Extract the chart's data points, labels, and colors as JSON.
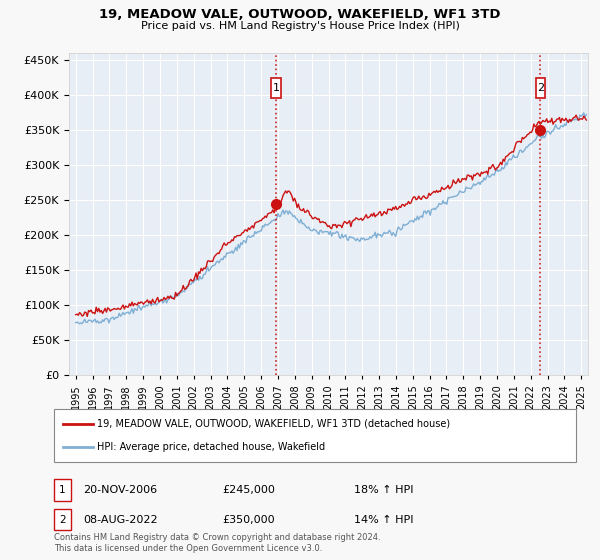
{
  "title": "19, MEADOW VALE, OUTWOOD, WAKEFIELD, WF1 3TD",
  "subtitle": "Price paid vs. HM Land Registry's House Price Index (HPI)",
  "legend_line1": "19, MEADOW VALE, OUTWOOD, WAKEFIELD, WF1 3TD (detached house)",
  "legend_line2": "HPI: Average price, detached house, Wakefield",
  "footnote": "Contains HM Land Registry data © Crown copyright and database right 2024.\nThis data is licensed under the Open Government Licence v3.0.",
  "transaction1_label": "1",
  "transaction1_date": "20-NOV-2006",
  "transaction1_price": "£245,000",
  "transaction1_hpi": "18% ↑ HPI",
  "transaction2_label": "2",
  "transaction2_date": "08-AUG-2022",
  "transaction2_price": "£350,000",
  "transaction2_hpi": "14% ↑ HPI",
  "sale1_x": 2006.89,
  "sale1_y": 245000,
  "sale2_x": 2022.58,
  "sale2_y": 350000,
  "red_line_color": "#cc1111",
  "blue_line_color": "#7fafd4",
  "plot_bg": "#e8eef5",
  "grid_color": "#ffffff",
  "fig_bg": "#f8f8f8",
  "ylim": [
    0,
    460000
  ],
  "xlim_left": 1994.6,
  "xlim_right": 2025.4,
  "yticks": [
    0,
    50000,
    100000,
    150000,
    200000,
    250000,
    300000,
    350000,
    400000,
    450000
  ],
  "xticks": [
    1995,
    1996,
    1997,
    1998,
    1999,
    2000,
    2001,
    2002,
    2003,
    2004,
    2005,
    2006,
    2007,
    2008,
    2009,
    2010,
    2011,
    2012,
    2013,
    2014,
    2015,
    2016,
    2017,
    2018,
    2019,
    2020,
    2021,
    2022,
    2023,
    2024,
    2025
  ]
}
